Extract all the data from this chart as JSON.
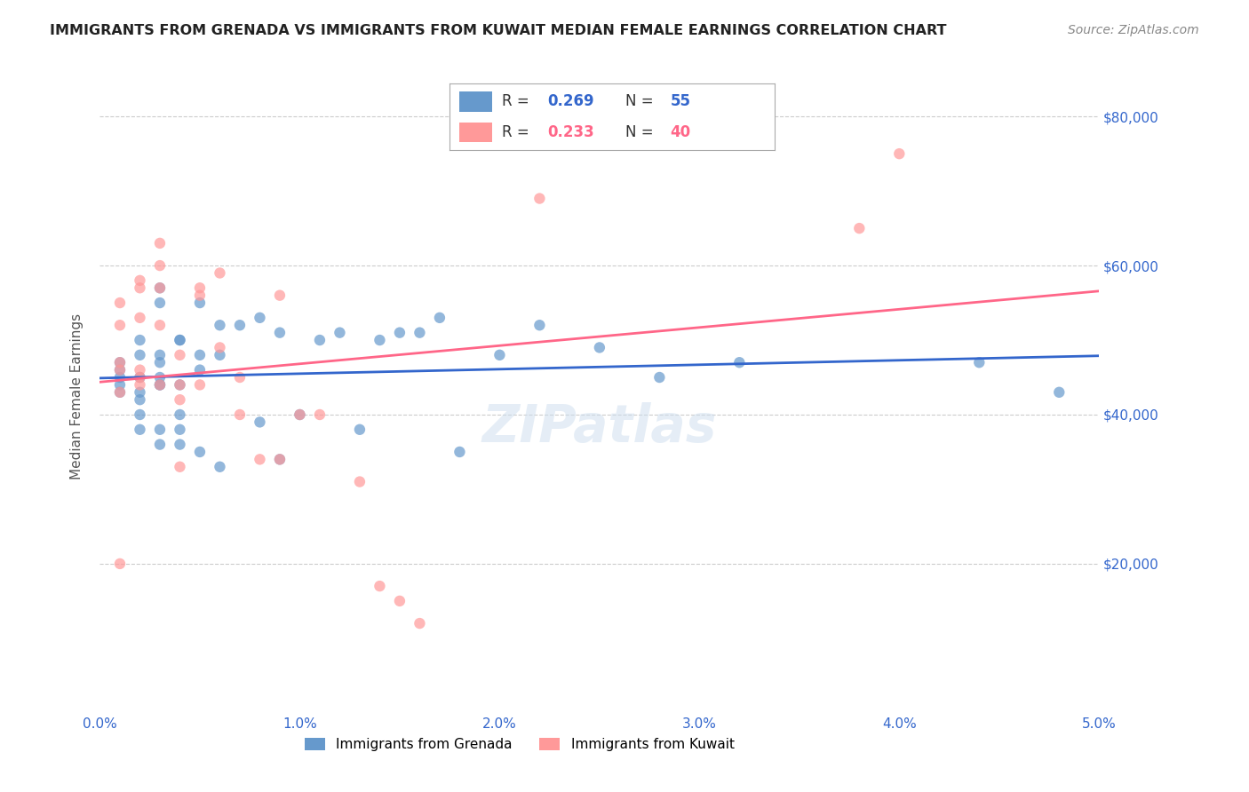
{
  "title": "IMMIGRANTS FROM GRENADA VS IMMIGRANTS FROM KUWAIT MEDIAN FEMALE EARNINGS CORRELATION CHART",
  "source": "Source: ZipAtlas.com",
  "xlabel": "",
  "ylabel": "Median Female Earnings",
  "xlim": [
    0.0,
    0.05
  ],
  "ylim": [
    0,
    85000
  ],
  "yticks": [
    20000,
    40000,
    60000,
    80000
  ],
  "ytick_labels": [
    "$20,000",
    "$40,000",
    "$60,000",
    "$80,000"
  ],
  "xtick_labels": [
    "0.0%",
    "1.0%",
    "2.0%",
    "3.0%",
    "4.0%",
    "5.0%"
  ],
  "xticks": [
    0.0,
    0.01,
    0.02,
    0.03,
    0.04,
    0.05
  ],
  "grenada_R": 0.269,
  "grenada_N": 55,
  "kuwait_R": 0.233,
  "kuwait_N": 40,
  "grenada_color": "#6699CC",
  "kuwait_color": "#FF9999",
  "grenada_line_color": "#3366CC",
  "kuwait_line_color": "#FF6688",
  "background_color": "#ffffff",
  "grid_color": "#cccccc",
  "axis_color": "#3366CC",
  "watermark": "ZIPatlas",
  "grenada_x": [
    0.001,
    0.001,
    0.001,
    0.001,
    0.001,
    0.002,
    0.002,
    0.002,
    0.002,
    0.002,
    0.002,
    0.002,
    0.003,
    0.003,
    0.003,
    0.003,
    0.003,
    0.003,
    0.003,
    0.003,
    0.003,
    0.004,
    0.004,
    0.004,
    0.004,
    0.004,
    0.004,
    0.005,
    0.005,
    0.005,
    0.005,
    0.006,
    0.006,
    0.006,
    0.007,
    0.008,
    0.008,
    0.009,
    0.009,
    0.01,
    0.011,
    0.012,
    0.013,
    0.014,
    0.015,
    0.016,
    0.017,
    0.018,
    0.02,
    0.022,
    0.025,
    0.028,
    0.032,
    0.044,
    0.048
  ],
  "grenada_y": [
    44000,
    45000,
    46000,
    47000,
    43000,
    42000,
    43000,
    45000,
    48000,
    50000,
    38000,
    40000,
    44000,
    44000,
    45000,
    55000,
    57000,
    48000,
    47000,
    38000,
    36000,
    50000,
    50000,
    44000,
    40000,
    38000,
    36000,
    55000,
    48000,
    46000,
    35000,
    52000,
    48000,
    33000,
    52000,
    53000,
    39000,
    51000,
    34000,
    40000,
    50000,
    51000,
    38000,
    50000,
    51000,
    51000,
    53000,
    35000,
    48000,
    52000,
    49000,
    45000,
    47000,
    47000,
    43000
  ],
  "kuwait_x": [
    0.001,
    0.001,
    0.001,
    0.001,
    0.001,
    0.001,
    0.002,
    0.002,
    0.002,
    0.002,
    0.002,
    0.002,
    0.003,
    0.003,
    0.003,
    0.003,
    0.003,
    0.004,
    0.004,
    0.004,
    0.004,
    0.005,
    0.005,
    0.005,
    0.006,
    0.006,
    0.007,
    0.007,
    0.008,
    0.009,
    0.009,
    0.01,
    0.011,
    0.013,
    0.014,
    0.015,
    0.016,
    0.022,
    0.038,
    0.04
  ],
  "kuwait_y": [
    46000,
    47000,
    52000,
    43000,
    55000,
    20000,
    44000,
    46000,
    53000,
    45000,
    57000,
    58000,
    63000,
    60000,
    57000,
    52000,
    44000,
    48000,
    44000,
    42000,
    33000,
    56000,
    44000,
    57000,
    59000,
    49000,
    45000,
    40000,
    34000,
    34000,
    56000,
    40000,
    40000,
    31000,
    17000,
    15000,
    12000,
    69000,
    65000,
    75000
  ]
}
